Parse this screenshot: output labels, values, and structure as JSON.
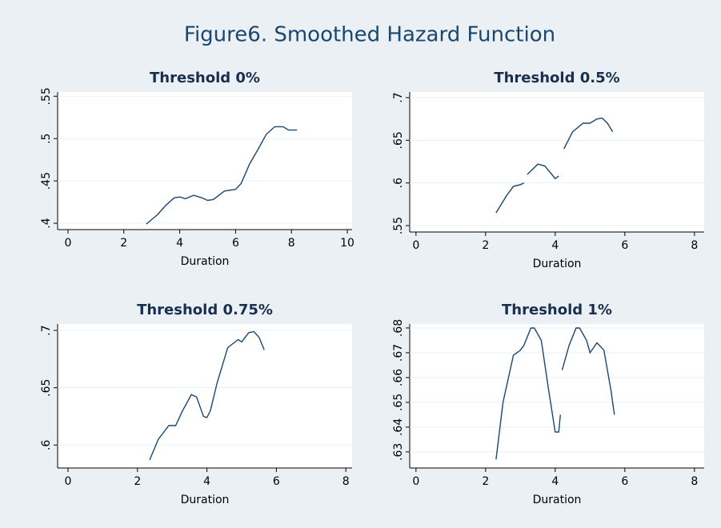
{
  "title": "Figure6. Smoothed Hazard Function",
  "chart_data": [
    {
      "type": "line",
      "title": "Threshold 0%",
      "x_label": "Duration",
      "color": "#1a476f",
      "grid": true,
      "xlim": [
        -0.37,
        10.17
      ],
      "xticks": [
        0,
        2,
        4,
        6,
        8,
        10
      ],
      "ylim": [
        0.3925,
        0.555
      ],
      "yticks": [
        {
          "value": 0.4,
          "label": ".4"
        },
        {
          "value": 0.45,
          "label": ".45"
        },
        {
          "value": 0.5,
          "label": ".5"
        },
        {
          "value": 0.55,
          "label": ".55"
        }
      ],
      "x": [
        2.8,
        3.2,
        3.5,
        3.8,
        4.0,
        4.2,
        4.5,
        4.8,
        5.0,
        5.2,
        5.6,
        6.0,
        6.2,
        6.5,
        6.8,
        7.1,
        7.4,
        7.7,
        7.9,
        8.2
      ],
      "values": [
        0.399,
        0.41,
        0.421,
        0.43,
        0.431,
        0.429,
        0.433,
        0.43,
        0.427,
        0.428,
        0.438,
        0.44,
        0.447,
        0.47,
        0.487,
        0.505,
        0.514,
        0.514,
        0.51,
        0.51
      ]
    },
    {
      "type": "line",
      "title": "Threshold 0.5%",
      "x_label": "Duration",
      "color": "#1a476f",
      "grid": true,
      "xlim": [
        -0.18,
        8.28
      ],
      "xticks": [
        0,
        2,
        4,
        6,
        8
      ],
      "ylim": [
        0.5425,
        0.7066
      ],
      "yticks": [
        {
          "value": 0.55,
          "label": ".55"
        },
        {
          "value": 0.6,
          "label": ".6"
        },
        {
          "value": 0.65,
          "label": ".65"
        },
        {
          "value": 0.7,
          "label": ".7"
        }
      ],
      "x": [
        2.3,
        2.6,
        2.8,
        3.0,
        3.1,
        3.15,
        3.2,
        3.5,
        3.7,
        3.9,
        4.0,
        4.1,
        4.18,
        4.25,
        4.5,
        4.8,
        5.0,
        5.2,
        5.35,
        5.5,
        5.65
      ],
      "values": [
        0.565,
        0.585,
        0.596,
        0.598,
        0.6,
        null,
        0.61,
        0.622,
        0.62,
        0.61,
        0.605,
        0.608,
        null,
        0.64,
        0.66,
        0.67,
        0.67,
        0.675,
        0.676,
        0.67,
        0.66
      ]
    },
    {
      "type": "line",
      "title": "Threshold 0.75%",
      "x_label": "Duration",
      "color": "#1a476f",
      "grid": true,
      "xlim": [
        -0.3,
        8.18
      ],
      "xticks": [
        0,
        2,
        4,
        6,
        8
      ],
      "ylim": [
        0.58,
        0.7056
      ],
      "yticks": [
        {
          "value": 0.6,
          "label": ".6"
        },
        {
          "value": 0.65,
          "label": ".65"
        },
        {
          "value": 0.7,
          "label": ".7"
        }
      ],
      "x": [
        2.35,
        2.6,
        2.9,
        3.1,
        3.3,
        3.55,
        3.7,
        3.9,
        4.0,
        4.1,
        4.3,
        4.6,
        4.9,
        5.0,
        5.2,
        5.35,
        5.5,
        5.65
      ],
      "values": [
        0.587,
        0.605,
        0.617,
        0.617,
        0.63,
        0.644,
        0.642,
        0.625,
        0.624,
        0.63,
        0.655,
        0.685,
        0.692,
        0.69,
        0.698,
        0.699,
        0.694,
        0.683
      ]
    },
    {
      "type": "line",
      "title": "Threshold 1%",
      "x_label": "Duration",
      "color": "#1a476f",
      "grid": true,
      "xlim": [
        -0.18,
        8.28
      ],
      "xticks": [
        0,
        2,
        4,
        6,
        8
      ],
      "ylim": [
        0.6235,
        0.6816
      ],
      "yticks": [
        {
          "value": 0.63,
          "label": ".63"
        },
        {
          "value": 0.64,
          "label": ".64"
        },
        {
          "value": 0.65,
          "label": ".65"
        },
        {
          "value": 0.66,
          "label": ".66"
        },
        {
          "value": 0.67,
          "label": ".67"
        },
        {
          "value": 0.68,
          "label": ".68"
        }
      ],
      "x": [
        2.3,
        2.5,
        2.8,
        3.0,
        3.1,
        3.3,
        3.4,
        3.6,
        3.8,
        4.0,
        4.1,
        4.15,
        4.18,
        4.2,
        4.4,
        4.6,
        4.7,
        4.9,
        5.0,
        5.2,
        5.4,
        5.6,
        5.7
      ],
      "values": [
        0.627,
        0.65,
        0.669,
        0.671,
        0.673,
        0.68,
        0.68,
        0.675,
        0.656,
        0.638,
        0.638,
        0.645,
        null,
        0.663,
        0.673,
        0.68,
        0.68,
        0.675,
        0.67,
        0.674,
        0.671,
        0.655,
        0.645
      ]
    }
  ]
}
